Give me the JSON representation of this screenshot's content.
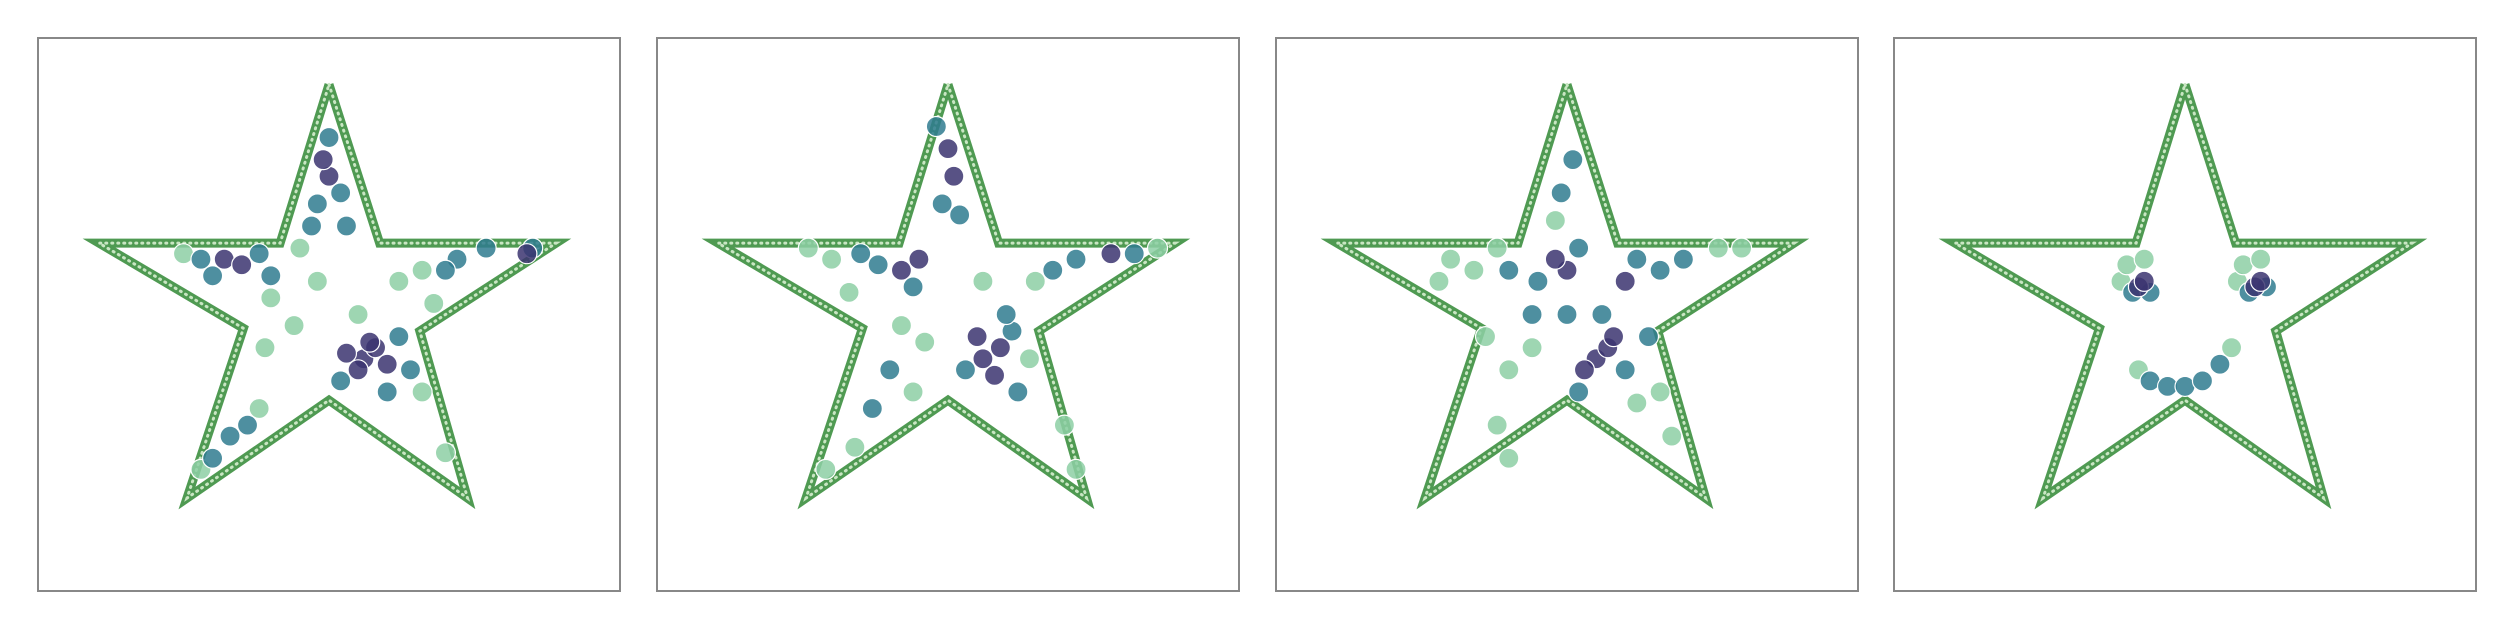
{
  "chart_data": [
    {
      "type": "scatter",
      "xlim": [
        0,
        100
      ],
      "ylim": [
        0,
        100
      ],
      "series": [
        {
          "type": "line",
          "color": "#4f9a52",
          "x": [
            50,
            58.7,
            89,
            65.6,
            73.8,
            50,
            25.6,
            35.3,
            10.5,
            41.6,
            50
          ],
          "values": [
            91.6,
            62.9,
            62.9,
            47,
            16.8,
            34.5,
            16.8,
            47.5,
            62.9,
            62.9,
            91.6
          ]
        },
        {
          "color": "#8dcfa5",
          "x": [
            45,
            62,
            66,
            44,
            40,
            28,
            38,
            68,
            25,
            48,
            55,
            66,
            70,
            39
          ],
          "values": [
            62,
            56,
            58,
            48,
            53,
            22,
            33,
            52,
            61,
            56,
            50,
            36,
            25,
            44
          ]
        },
        {
          "color": "#2f7b8f",
          "x": [
            48,
            52,
            50,
            47,
            53,
            28,
            38,
            30,
            40,
            72,
            77,
            85,
            70,
            62,
            52,
            60,
            64,
            33,
            30,
            36
          ],
          "values": [
            70,
            72,
            82,
            66,
            66,
            60,
            61,
            57,
            57,
            60,
            62,
            62,
            58,
            46,
            38,
            36,
            40,
            28,
            24,
            30
          ]
        },
        {
          "color": "#3b3470",
          "x": [
            56,
            58,
            55,
            60,
            57,
            53,
            50,
            49,
            32,
            35,
            84
          ],
          "values": [
            42,
            44,
            40,
            41,
            45,
            43,
            75,
            78,
            60,
            59,
            61
          ]
        }
      ]
    },
    {
      "type": "scatter",
      "xlim": [
        0,
        100
      ],
      "ylim": [
        0,
        100
      ],
      "series": [
        {
          "type": "line",
          "color": "#4f9a52",
          "x": [
            50,
            58.7,
            89,
            65.6,
            73.8,
            50,
            25.6,
            35.3,
            10.5,
            41.6,
            50
          ],
          "values": [
            91.6,
            62.9,
            62.9,
            47,
            16.8,
            34.5,
            16.8,
            47.5,
            62.9,
            62.9,
            91.6
          ]
        },
        {
          "color": "#8dcfa5",
          "x": [
            30,
            26,
            33,
            42,
            65,
            86,
            70,
            72,
            34,
            29,
            46,
            44,
            56,
            64
          ],
          "values": [
            60,
            62,
            54,
            48,
            56,
            62,
            30,
            22,
            26,
            22,
            45,
            36,
            56,
            42
          ]
        },
        {
          "color": "#2f7b8f",
          "x": [
            49,
            52,
            48,
            38,
            35,
            44,
            72,
            82,
            68,
            61,
            53,
            62,
            60,
            37,
            40
          ],
          "values": [
            70,
            68,
            84,
            59,
            61,
            55,
            60,
            61,
            58,
            47,
            40,
            36,
            50,
            33,
            40
          ]
        },
        {
          "color": "#3b3470",
          "x": [
            56,
            59,
            55,
            58,
            42,
            45,
            78,
            51,
            50
          ],
          "values": [
            42,
            44,
            46,
            39,
            58,
            60,
            61,
            75,
            80
          ]
        }
      ]
    },
    {
      "type": "scatter",
      "xlim": [
        0,
        100
      ],
      "ylim": [
        0,
        100
      ],
      "series": [
        {
          "type": "line",
          "color": "#4f9a52",
          "x": [
            50,
            58.7,
            89,
            65.6,
            73.8,
            50,
            25.6,
            35.3,
            10.5,
            41.6,
            50
          ],
          "values": [
            91.6,
            62.9,
            62.9,
            47,
            16.8,
            34.5,
            16.8,
            47.5,
            62.9,
            62.9,
            91.6
          ]
        },
        {
          "color": "#8dcfa5",
          "x": [
            34,
            30,
            38,
            76,
            80,
            36,
            40,
            38,
            40,
            66,
            68,
            44,
            62,
            48,
            28
          ],
          "values": [
            58,
            60,
            62,
            62,
            62,
            46,
            40,
            30,
            24,
            36,
            28,
            44,
            34,
            67,
            56
          ]
        },
        {
          "color": "#2f7b8f",
          "x": [
            45,
            52,
            40,
            62,
            66,
            70,
            50,
            56,
            60,
            52,
            49,
            51,
            64,
            44
          ],
          "values": [
            56,
            62,
            58,
            60,
            58,
            60,
            50,
            50,
            40,
            36,
            72,
            78,
            46,
            50
          ]
        },
        {
          "color": "#3b3470",
          "x": [
            55,
            57,
            53,
            50,
            48,
            60,
            58
          ],
          "values": [
            42,
            44,
            40,
            58,
            60,
            56,
            46
          ]
        }
      ]
    },
    {
      "type": "scatter",
      "xlim": [
        0,
        100
      ],
      "ylim": [
        0,
        100
      ],
      "series": [
        {
          "type": "line",
          "color": "#4f9a52",
          "x": [
            50,
            58.7,
            89,
            65.6,
            73.8,
            50,
            25.6,
            35.3,
            10.5,
            41.6,
            50
          ],
          "values": [
            91.6,
            62.9,
            62.9,
            47,
            16.8,
            34.5,
            16.8,
            47.5,
            62.9,
            62.9,
            91.6
          ]
        },
        {
          "color": "#8dcfa5",
          "x": [
            39,
            40,
            43,
            59,
            60,
            63,
            42,
            58
          ],
          "values": [
            56,
            59,
            60,
            56,
            59,
            60,
            40,
            44
          ]
        },
        {
          "color": "#2f7b8f",
          "x": [
            41,
            44,
            61,
            64,
            44,
            47,
            50,
            53,
            56
          ],
          "values": [
            54,
            54,
            54,
            55,
            38,
            37,
            37,
            38,
            41
          ]
        },
        {
          "color": "#3b3470",
          "x": [
            42,
            43,
            62,
            63
          ],
          "values": [
            55,
            56,
            55,
            56
          ]
        }
      ]
    }
  ]
}
